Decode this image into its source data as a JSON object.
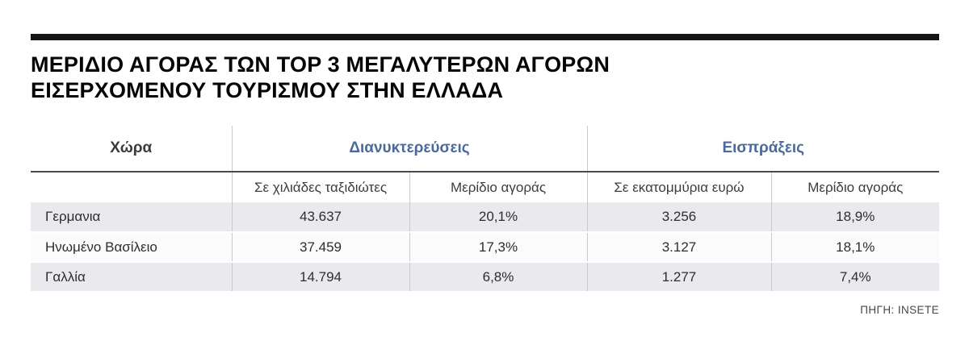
{
  "title": {
    "line1": "ΜΕΡΙΔΙΟ ΑΓΟΡΑΣ ΤΩΝ TOP 3 ΜΕΓΑΛΥΤΕΡΩΝ ΑΓΟΡΩΝ",
    "line2": "ΕΙΣΕΡΧΟΜΕΝΟΥ ΤΟΥΡΙΣΜΟΥ ΣΤΗΝ ΕΛΛΑΔΑ"
  },
  "table": {
    "country_header": "Χώρα",
    "group_nights": "Διανυκτερεύσεις",
    "group_receipts": "Εισπράξεις",
    "subheaders": [
      "Σε χιλιάδες ταξιδιώτες",
      "Μερίδιο αγοράς",
      "Σε εκατομμύρια ευρώ",
      "Μερίδιο αγοράς"
    ],
    "rows": [
      {
        "country": "Γερμανια",
        "nights": "43.637",
        "nights_share": "20,1%",
        "receipts": "3.256",
        "receipts_share": "18,9%"
      },
      {
        "country": "Ηνωμένο Βασίλειο",
        "nights": "37.459",
        "nights_share": "17,3%",
        "receipts": "3.127",
        "receipts_share": "18,1%"
      },
      {
        "country": "Γαλλία",
        "nights": "14.794",
        "nights_share": "6,8%",
        "receipts": "1.277",
        "receipts_share": "7,4%"
      }
    ]
  },
  "source": "ΠΗΓΗ: INSETE",
  "colors": {
    "accent_blue": "#4a6b99",
    "bar_black": "#141414",
    "row_alt_gray": "#e9e9ee"
  },
  "chart_data": {
    "type": "table",
    "title": "ΜΕΡΙΔΙΟ ΑΓΟΡΑΣ ΤΩΝ TOP 3 ΜΕΓΑΛΥΤΕΡΩΝ ΑΓΟΡΩΝ ΕΙΣΕΡΧΟΜΕΝΟΥ ΤΟΥΡΙΣΜΟΥ ΣΤΗΝ ΕΛΛΑΔΑ",
    "column_groups": [
      "Χώρα",
      "Διανυκτερεύσεις",
      "Εισπράξεις"
    ],
    "columns": [
      "Χώρα",
      "Σε χιλιάδες ταξιδιώτες",
      "Μερίδιο αγοράς",
      "Σε εκατομμύρια ευρώ",
      "Μερίδιο αγοράς"
    ],
    "rows": [
      {
        "country": "Γερμανια",
        "nights_thousands": 43637,
        "nights_market_share_pct": 20.1,
        "receipts_million_eur": 3256,
        "receipts_market_share_pct": 18.9
      },
      {
        "country": "Ηνωμένο Βασίλειο",
        "nights_thousands": 37459,
        "nights_market_share_pct": 17.3,
        "receipts_million_eur": 3127,
        "receipts_market_share_pct": 18.1
      },
      {
        "country": "Γαλλία",
        "nights_thousands": 14794,
        "nights_market_share_pct": 6.8,
        "receipts_million_eur": 1277,
        "receipts_market_share_pct": 7.4
      }
    ],
    "source": "ΠΗΓΗ: INSETE"
  }
}
